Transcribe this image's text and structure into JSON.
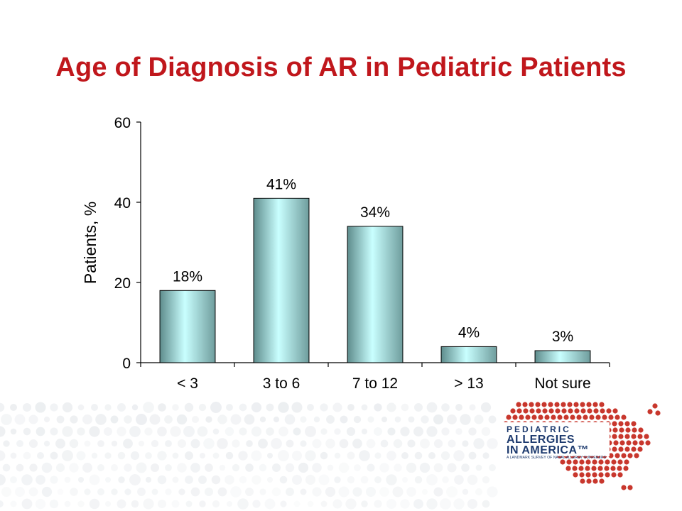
{
  "slide": {
    "title": "Age of Diagnosis of AR in Pediatric Patients",
    "title_color": "#c0171c"
  },
  "chart_data": {
    "type": "bar",
    "title": "",
    "xlabel": "",
    "ylabel": "Patients, %",
    "ylim": [
      0,
      60
    ],
    "yticks": [
      0,
      20,
      40,
      60
    ],
    "categories": [
      "< 3",
      "3 to 6",
      "7 to 12",
      "> 13",
      "Not sure"
    ],
    "values": [
      18,
      41,
      34,
      4,
      3
    ],
    "data_labels": [
      "18%",
      "41%",
      "34%",
      "4%",
      "3%"
    ],
    "bar_colors": [
      "#5e8c8c",
      "#c9ffff"
    ],
    "grid": false,
    "legend": "none"
  },
  "logo": {
    "line1": "PEDIATRIC",
    "line2": "ALLERGIES",
    "line3": "IN AMERICA™",
    "line4": "A LANDMARK SURVEY OF NASAL ALLERGY SUFFERERS",
    "dot_color": "#c8372d",
    "text_color": "#1d3a6e"
  }
}
